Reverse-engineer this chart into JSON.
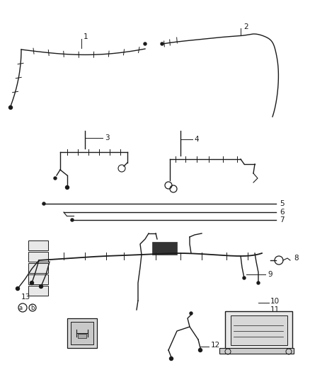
{
  "bg_color": "#ffffff",
  "line_color": "#1a1a1a",
  "fig_width": 4.38,
  "fig_height": 5.33,
  "dpi": 100,
  "label_fontsize": 7.5
}
